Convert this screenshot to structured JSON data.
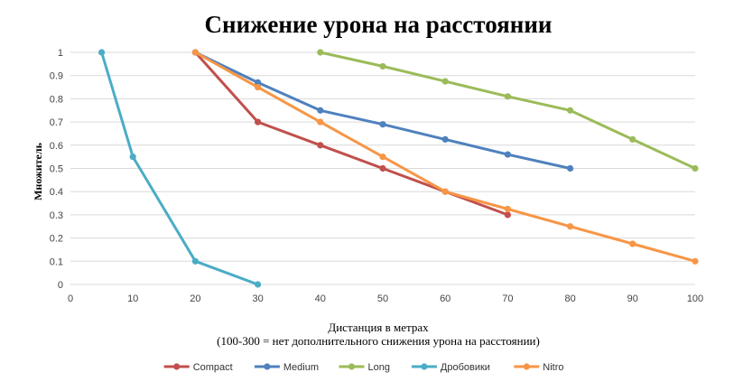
{
  "chart_data": {
    "type": "line",
    "title": "Снижение урона на расстоянии",
    "xlabel": "Дистанция в метрах",
    "xlabel_note": "(100-300 = нет дополнительного снижения урона на расстоянии)",
    "ylabel": "Множитель",
    "xlim": [
      0,
      100
    ],
    "ylim": [
      0,
      1
    ],
    "x_ticks": [
      "0",
      "10",
      "20",
      "30",
      "40",
      "50",
      "60",
      "70",
      "80",
      "90",
      "100"
    ],
    "y_ticks": [
      "0",
      "0.1",
      "0.2",
      "0.3",
      "0.4",
      "0.5",
      "0.6",
      "0.7",
      "0.8",
      "0.9",
      "1"
    ],
    "grid": "horizontal",
    "legend_position": "bottom",
    "series": [
      {
        "name": "Compact",
        "color": "#c0504d",
        "points": [
          [
            20,
            1.0
          ],
          [
            30,
            0.7
          ],
          [
            40,
            0.6
          ],
          [
            50,
            0.5
          ],
          [
            60,
            0.4
          ],
          [
            70,
            0.3
          ]
        ]
      },
      {
        "name": "Medium",
        "color": "#4f81bd",
        "points": [
          [
            20,
            1.0
          ],
          [
            30,
            0.87
          ],
          [
            40,
            0.75
          ],
          [
            50,
            0.69
          ],
          [
            60,
            0.625
          ],
          [
            70,
            0.56
          ],
          [
            80,
            0.5
          ]
        ]
      },
      {
        "name": "Long",
        "color": "#9bbb59",
        "points": [
          [
            40,
            1.0
          ],
          [
            50,
            0.94
          ],
          [
            60,
            0.875
          ],
          [
            70,
            0.81
          ],
          [
            80,
            0.75
          ],
          [
            90,
            0.625
          ],
          [
            100,
            0.5
          ]
        ]
      },
      {
        "name": "Дробовики",
        "color": "#4bacc6",
        "points": [
          [
            5,
            1.0
          ],
          [
            10,
            0.55
          ],
          [
            20,
            0.1
          ],
          [
            30,
            0.0
          ]
        ]
      },
      {
        "name": "Nitro",
        "color": "#f79646",
        "points": [
          [
            20,
            1.0
          ],
          [
            30,
            0.85
          ],
          [
            40,
            0.7
          ],
          [
            50,
            0.55
          ],
          [
            60,
            0.4
          ],
          [
            70,
            0.325
          ],
          [
            80,
            0.25
          ],
          [
            90,
            0.175
          ],
          [
            100,
            0.1
          ]
        ]
      }
    ]
  }
}
